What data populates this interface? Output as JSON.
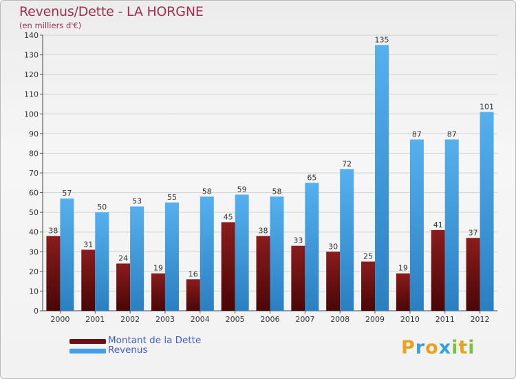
{
  "header": {
    "title": "Revenus/Dette - LA HORGNE",
    "subtitle": "(en milliers d'€)"
  },
  "chart_data": {
    "type": "bar",
    "title": "Revenus/Dette - LA HORGNE",
    "ylabel": "(en milliers d'€)",
    "xlabel": "",
    "categories": [
      "2000",
      "2001",
      "2002",
      "2003",
      "2004",
      "2005",
      "2006",
      "2007",
      "2008",
      "2009",
      "2010",
      "2011",
      "2012"
    ],
    "series": [
      {
        "name": "Montant de la Dette",
        "color": "#7a1414",
        "values": [
          38,
          31,
          24,
          19,
          16,
          45,
          38,
          33,
          30,
          25,
          19,
          41,
          37
        ]
      },
      {
        "name": "Revenus",
        "color": "#3f9fe6",
        "values": [
          57,
          50,
          53,
          55,
          58,
          59,
          58,
          65,
          72,
          135,
          87,
          87,
          101
        ]
      }
    ],
    "ylim": [
      0,
      140
    ],
    "yticks": [
      0,
      10,
      20,
      30,
      40,
      50,
      60,
      70,
      80,
      90,
      100,
      110,
      120,
      130,
      140
    ],
    "grid": true,
    "legend_position": "bottom-left"
  },
  "legend": {
    "items": [
      {
        "label": "Montant de la Dette",
        "color": "#6b0f0f"
      },
      {
        "label": "Revenus",
        "color": "#3f9fe6"
      }
    ]
  },
  "logo": {
    "text": "Proxiti",
    "letters": [
      "P",
      "r",
      "o",
      "x",
      "i",
      "t",
      "i"
    ],
    "colors": [
      "#e8a21c",
      "#3aa0d8",
      "#e8a21c",
      "#3aa0d8",
      "#7cc242",
      "#e8a21c",
      "#7cc242"
    ]
  }
}
